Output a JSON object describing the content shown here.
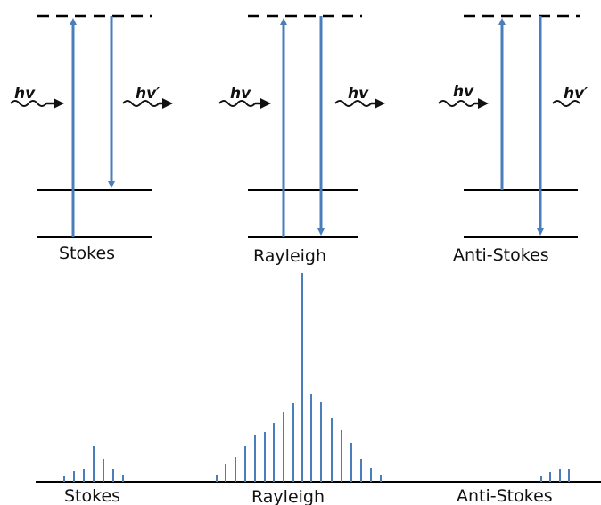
{
  "diagram": {
    "colors": {
      "transition": "#4a7ebb",
      "line": "#000000"
    },
    "panels": [
      {
        "label": "Stokes",
        "photon_in": "hv",
        "photon_out": "hv′"
      },
      {
        "label": "Rayleigh",
        "photon_in": "hv",
        "photon_out": "hv"
      },
      {
        "label": "Anti-Stokes",
        "photon_in": "hv",
        "photon_out": "hv′"
      }
    ],
    "spectrum_labels": [
      "Stokes",
      "Rayleigh",
      "Anti-Stokes"
    ]
  }
}
